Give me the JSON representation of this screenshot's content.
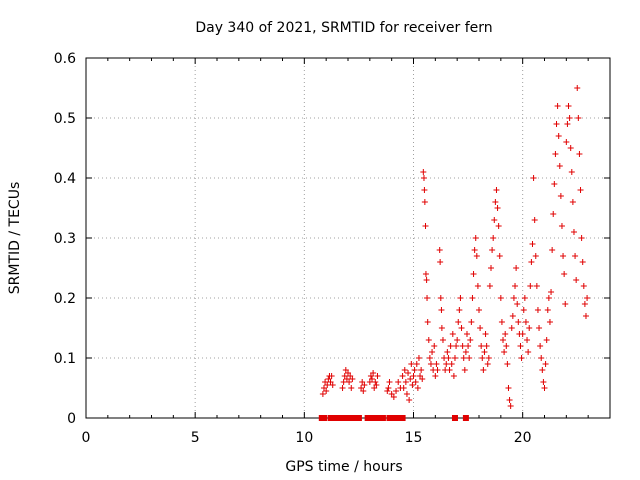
{
  "chart_data": {
    "type": "scatter",
    "title": "Day 340 of 2021, SRMTID for receiver fern",
    "xlabel": "GPS time / hours",
    "ylabel": "SRMTID / TECUs",
    "xlim": [
      0,
      24
    ],
    "ylim": [
      0,
      0.6
    ],
    "xticks": [
      "0",
      "5",
      "10",
      "15",
      "20"
    ],
    "yticks": [
      "0",
      "0.1",
      "0.2",
      "0.3",
      "0.4",
      "0.5",
      "0.6"
    ],
    "grid": true,
    "marker": "+",
    "color": "#e00000",
    "series": [
      {
        "name": "fern",
        "points": [
          [
            10.85,
            0.04
          ],
          [
            10.9,
            0.05
          ],
          [
            10.95,
            0.06
          ],
          [
            11.0,
            0.045
          ],
          [
            11.05,
            0.055
          ],
          [
            11.1,
            0.065
          ],
          [
            11.15,
            0.07
          ],
          [
            11.2,
            0.06
          ],
          [
            11.25,
            0.07
          ],
          [
            11.3,
            0.055
          ],
          [
            11.75,
            0.05
          ],
          [
            11.8,
            0.06
          ],
          [
            11.85,
            0.07
          ],
          [
            11.9,
            0.08
          ],
          [
            11.95,
            0.065
          ],
          [
            12.0,
            0.075
          ],
          [
            12.05,
            0.06
          ],
          [
            12.1,
            0.07
          ],
          [
            12.15,
            0.05
          ],
          [
            12.2,
            0.065
          ],
          [
            12.6,
            0.05
          ],
          [
            12.65,
            0.06
          ],
          [
            12.7,
            0.045
          ],
          [
            12.75,
            0.055
          ],
          [
            13.0,
            0.06
          ],
          [
            13.05,
            0.07
          ],
          [
            13.1,
            0.065
          ],
          [
            13.15,
            0.075
          ],
          [
            13.2,
            0.05
          ],
          [
            13.25,
            0.06
          ],
          [
            13.3,
            0.055
          ],
          [
            13.35,
            0.07
          ],
          [
            13.8,
            0.045
          ],
          [
            13.85,
            0.05
          ],
          [
            13.9,
            0.06
          ],
          [
            14.0,
            0.04
          ],
          [
            14.1,
            0.035
          ],
          [
            14.2,
            0.045
          ],
          [
            14.3,
            0.06
          ],
          [
            14.4,
            0.05
          ],
          [
            14.5,
            0.07
          ],
          [
            14.55,
            0.05
          ],
          [
            14.6,
            0.08
          ],
          [
            14.65,
            0.06
          ],
          [
            14.7,
            0.04
          ],
          [
            14.75,
            0.075
          ],
          [
            14.8,
            0.03
          ],
          [
            14.85,
            0.065
          ],
          [
            14.9,
            0.09
          ],
          [
            14.95,
            0.055
          ],
          [
            15.0,
            0.07
          ],
          [
            15.05,
            0.08
          ],
          [
            15.1,
            0.06
          ],
          [
            15.15,
            0.09
          ],
          [
            15.2,
            0.05
          ],
          [
            15.25,
            0.1
          ],
          [
            15.3,
            0.07
          ],
          [
            15.35,
            0.08
          ],
          [
            15.4,
            0.065
          ],
          [
            15.45,
            0.41
          ],
          [
            15.48,
            0.4
          ],
          [
            15.5,
            0.38
          ],
          [
            15.52,
            0.36
          ],
          [
            15.55,
            0.32
          ],
          [
            15.57,
            0.24
          ],
          [
            15.6,
            0.23
          ],
          [
            15.62,
            0.2
          ],
          [
            15.65,
            0.16
          ],
          [
            15.7,
            0.13
          ],
          [
            15.75,
            0.1
          ],
          [
            15.8,
            0.09
          ],
          [
            15.85,
            0.11
          ],
          [
            15.9,
            0.08
          ],
          [
            15.95,
            0.12
          ],
          [
            16.0,
            0.07
          ],
          [
            16.05,
            0.09
          ],
          [
            16.1,
            0.08
          ],
          [
            16.2,
            0.28
          ],
          [
            16.22,
            0.26
          ],
          [
            16.25,
            0.2
          ],
          [
            16.28,
            0.18
          ],
          [
            16.3,
            0.15
          ],
          [
            16.35,
            0.13
          ],
          [
            16.4,
            0.1
          ],
          [
            16.45,
            0.08
          ],
          [
            16.5,
            0.09
          ],
          [
            16.55,
            0.11
          ],
          [
            16.6,
            0.1
          ],
          [
            16.65,
            0.08
          ],
          [
            16.7,
            0.12
          ],
          [
            16.75,
            0.09
          ],
          [
            16.8,
            0.14
          ],
          [
            16.85,
            0.07
          ],
          [
            16.9,
            0.1
          ],
          [
            16.95,
            0.12
          ],
          [
            17.0,
            0.13
          ],
          [
            17.05,
            0.16
          ],
          [
            17.1,
            0.18
          ],
          [
            17.15,
            0.2
          ],
          [
            17.2,
            0.15
          ],
          [
            17.25,
            0.12
          ],
          [
            17.3,
            0.1
          ],
          [
            17.35,
            0.08
          ],
          [
            17.4,
            0.11
          ],
          [
            17.45,
            0.14
          ],
          [
            17.5,
            0.12
          ],
          [
            17.55,
            0.1
          ],
          [
            17.6,
            0.13
          ],
          [
            17.65,
            0.16
          ],
          [
            17.7,
            0.2
          ],
          [
            17.75,
            0.24
          ],
          [
            17.8,
            0.28
          ],
          [
            17.85,
            0.3
          ],
          [
            17.9,
            0.27
          ],
          [
            17.95,
            0.22
          ],
          [
            18.0,
            0.18
          ],
          [
            18.05,
            0.15
          ],
          [
            18.1,
            0.12
          ],
          [
            18.15,
            0.1
          ],
          [
            18.2,
            0.08
          ],
          [
            18.25,
            0.11
          ],
          [
            18.3,
            0.14
          ],
          [
            18.35,
            0.12
          ],
          [
            18.4,
            0.09
          ],
          [
            18.45,
            0.1
          ],
          [
            18.5,
            0.22
          ],
          [
            18.55,
            0.25
          ],
          [
            18.6,
            0.28
          ],
          [
            18.65,
            0.3
          ],
          [
            18.7,
            0.33
          ],
          [
            18.75,
            0.36
          ],
          [
            18.8,
            0.38
          ],
          [
            18.85,
            0.35
          ],
          [
            18.9,
            0.32
          ],
          [
            18.95,
            0.27
          ],
          [
            19.0,
            0.2
          ],
          [
            19.05,
            0.16
          ],
          [
            19.1,
            0.13
          ],
          [
            19.15,
            0.11
          ],
          [
            19.2,
            0.14
          ],
          [
            19.25,
            0.12
          ],
          [
            19.3,
            0.09
          ],
          [
            19.35,
            0.05
          ],
          [
            19.4,
            0.03
          ],
          [
            19.45,
            0.02
          ],
          [
            19.5,
            0.15
          ],
          [
            19.55,
            0.17
          ],
          [
            19.6,
            0.2
          ],
          [
            19.65,
            0.22
          ],
          [
            19.7,
            0.25
          ],
          [
            19.75,
            0.19
          ],
          [
            19.8,
            0.16
          ],
          [
            19.85,
            0.14
          ],
          [
            19.9,
            0.12
          ],
          [
            19.95,
            0.1
          ],
          [
            20.0,
            0.14
          ],
          [
            20.05,
            0.18
          ],
          [
            20.1,
            0.2
          ],
          [
            20.15,
            0.16
          ],
          [
            20.2,
            0.13
          ],
          [
            20.25,
            0.11
          ],
          [
            20.3,
            0.15
          ],
          [
            20.35,
            0.22
          ],
          [
            20.4,
            0.26
          ],
          [
            20.45,
            0.29
          ],
          [
            20.5,
            0.4
          ],
          [
            20.55,
            0.33
          ],
          [
            20.6,
            0.27
          ],
          [
            20.65,
            0.22
          ],
          [
            20.7,
            0.18
          ],
          [
            20.75,
            0.15
          ],
          [
            20.8,
            0.12
          ],
          [
            20.85,
            0.1
          ],
          [
            20.9,
            0.08
          ],
          [
            20.95,
            0.06
          ],
          [
            21.0,
            0.05
          ],
          [
            21.05,
            0.09
          ],
          [
            21.1,
            0.13
          ],
          [
            21.15,
            0.18
          ],
          [
            21.2,
            0.2
          ],
          [
            21.25,
            0.16
          ],
          [
            21.3,
            0.21
          ],
          [
            21.35,
            0.28
          ],
          [
            21.4,
            0.34
          ],
          [
            21.45,
            0.39
          ],
          [
            21.5,
            0.44
          ],
          [
            21.55,
            0.49
          ],
          [
            21.6,
            0.52
          ],
          [
            21.65,
            0.47
          ],
          [
            21.7,
            0.42
          ],
          [
            21.75,
            0.37
          ],
          [
            21.8,
            0.32
          ],
          [
            21.85,
            0.27
          ],
          [
            21.9,
            0.24
          ],
          [
            21.95,
            0.19
          ],
          [
            22.0,
            0.46
          ],
          [
            22.05,
            0.49
          ],
          [
            22.1,
            0.52
          ],
          [
            22.15,
            0.5
          ],
          [
            22.2,
            0.45
          ],
          [
            22.25,
            0.41
          ],
          [
            22.3,
            0.36
          ],
          [
            22.35,
            0.31
          ],
          [
            22.4,
            0.27
          ],
          [
            22.45,
            0.23
          ],
          [
            22.5,
            0.55
          ],
          [
            22.55,
            0.5
          ],
          [
            22.6,
            0.44
          ],
          [
            22.65,
            0.38
          ],
          [
            22.7,
            0.3
          ],
          [
            22.75,
            0.26
          ],
          [
            22.8,
            0.22
          ],
          [
            22.85,
            0.19
          ],
          [
            22.9,
            0.17
          ],
          [
            22.95,
            0.2
          ]
        ]
      }
    ],
    "baseline_points": [
      [
        10.8,
        0.0
      ],
      [
        10.9,
        0.0
      ],
      [
        11.2,
        0.0
      ],
      [
        11.3,
        0.0
      ],
      [
        11.4,
        0.0
      ],
      [
        11.5,
        0.0
      ],
      [
        11.6,
        0.0
      ],
      [
        11.7,
        0.0
      ],
      [
        11.8,
        0.0
      ],
      [
        11.9,
        0.0
      ],
      [
        12.0,
        0.0
      ],
      [
        12.2,
        0.0
      ],
      [
        12.4,
        0.0
      ],
      [
        12.5,
        0.0
      ],
      [
        12.9,
        0.0
      ],
      [
        13.0,
        0.0
      ],
      [
        13.2,
        0.0
      ],
      [
        13.3,
        0.0
      ],
      [
        13.5,
        0.0
      ],
      [
        13.6,
        0.0
      ],
      [
        13.9,
        0.0
      ],
      [
        14.0,
        0.0
      ],
      [
        14.2,
        0.0
      ],
      [
        14.4,
        0.0
      ],
      [
        14.5,
        0.0
      ],
      [
        16.9,
        0.0
      ],
      [
        17.4,
        0.0
      ]
    ]
  }
}
